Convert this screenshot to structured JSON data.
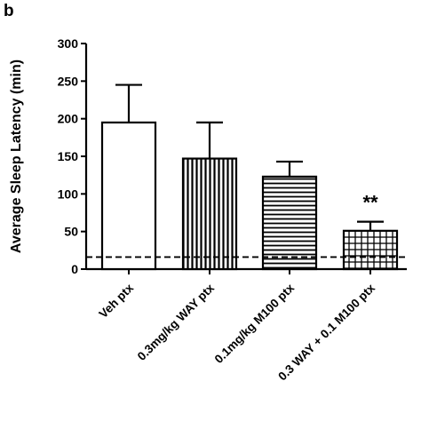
{
  "panel_label": "b",
  "chart_data": {
    "type": "bar",
    "title": "",
    "xlabel": "",
    "ylabel": "Average Sleep Latency (min)",
    "ylim": [
      0,
      300
    ],
    "yticks": [
      0,
      50,
      100,
      150,
      200,
      250,
      300
    ],
    "grid": false,
    "legend": "none",
    "categories": [
      "Veh ptx",
      "0.3mg/kg WAY ptx",
      "0.1mg/kg M100 ptx",
      "0.3 WAY + 0.1 M100 ptx"
    ],
    "values": [
      195,
      147,
      123,
      51
    ],
    "errors": [
      50,
      48,
      20,
      12
    ],
    "bar_patterns": [
      "solid-white",
      "vertical-stripes",
      "horizontal-stripes",
      "grid"
    ],
    "reference_line": {
      "y": 16,
      "style": "dashed"
    },
    "annotations": [
      {
        "category_index": 3,
        "text": "**"
      }
    ]
  }
}
